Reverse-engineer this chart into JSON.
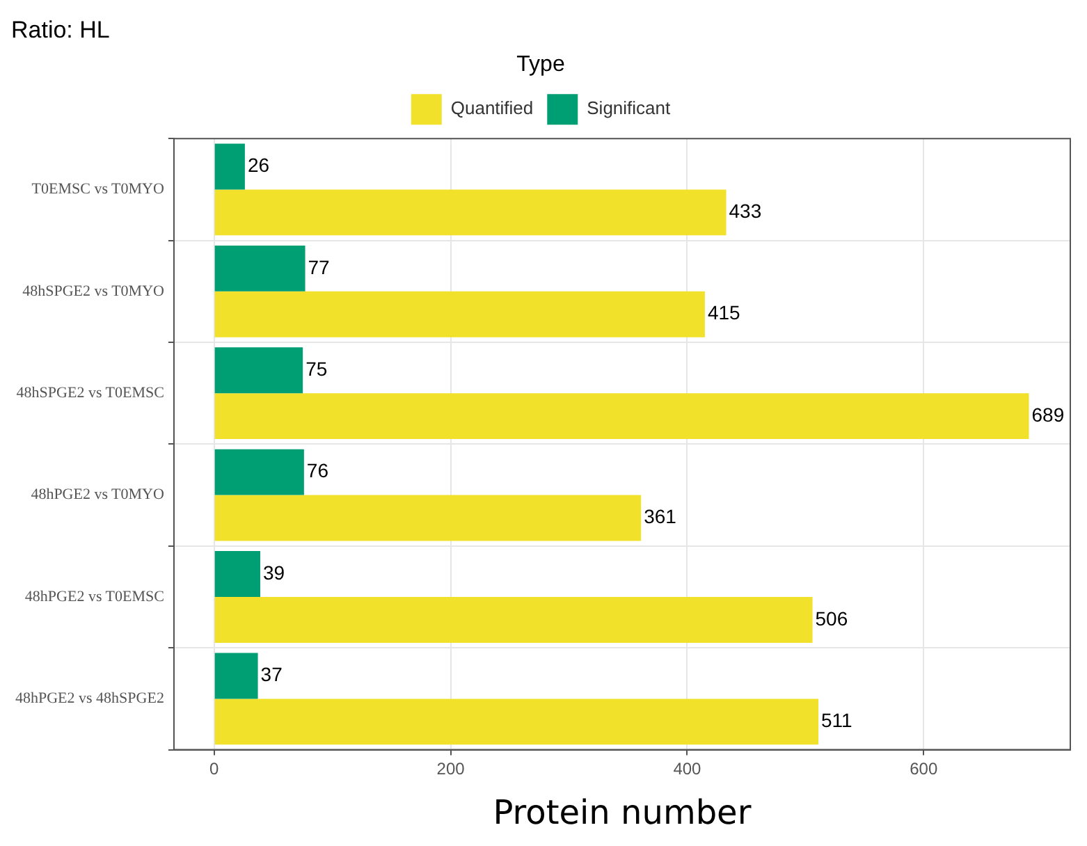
{
  "chart_data": {
    "type": "bar",
    "orientation": "horizontal",
    "title": "Ratio: HL",
    "xlabel": "Protein number",
    "legend_title": "Type",
    "legend": "top",
    "categories": [
      "T0EMSC vs T0MYO",
      "48hSPGE2 vs T0MYO",
      "48hSPGE2 vs T0EMSC",
      "48hPGE2 vs T0MYO",
      "48hPGE2 vs T0EMSC",
      "48hPGE2 vs 48hSPGE2"
    ],
    "series": [
      {
        "name": "Quantified",
        "color": "#f2e12a",
        "values": [
          433,
          415,
          689,
          361,
          506,
          511
        ]
      },
      {
        "name": "Significant",
        "color": "#009e73",
        "values": [
          26,
          77,
          75,
          76,
          39,
          37
        ]
      }
    ],
    "xlim": [
      -34,
      724
    ],
    "xticks": [
      0,
      200,
      400,
      600
    ],
    "grid": true,
    "data_labels": true
  }
}
